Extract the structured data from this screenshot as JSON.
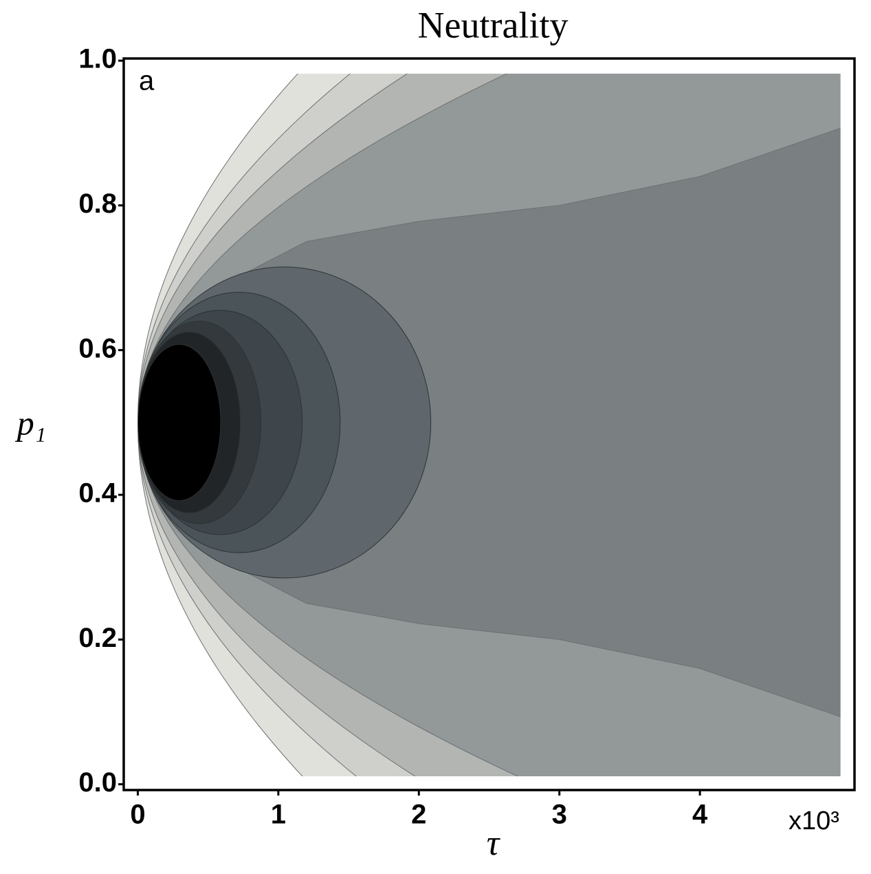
{
  "chart_data": {
    "type": "contour",
    "title": "Neutrality",
    "panel_label": "a",
    "x_label": "τ",
    "y_label": "p₁",
    "x_multiplier": "x10³",
    "xlim": [
      -0.1,
      5.1
    ],
    "ylim": [
      -0.008,
      1.003
    ],
    "xticks": [
      0,
      1,
      2,
      3,
      4
    ],
    "yticks": [
      {
        "value": 0,
        "label": "0.0"
      },
      0.2,
      0.4,
      0.6,
      0.8,
      {
        "value": 1,
        "label": "1.0"
      }
    ],
    "colors": [
      "#e1e1dc",
      "#cfd0cc",
      "#b3b5b2",
      "#939998",
      "#7a8082",
      "#5f676c",
      "#4a5459",
      "#3e464b",
      "#33393c",
      "#222527",
      "#000000"
    ]
  }
}
